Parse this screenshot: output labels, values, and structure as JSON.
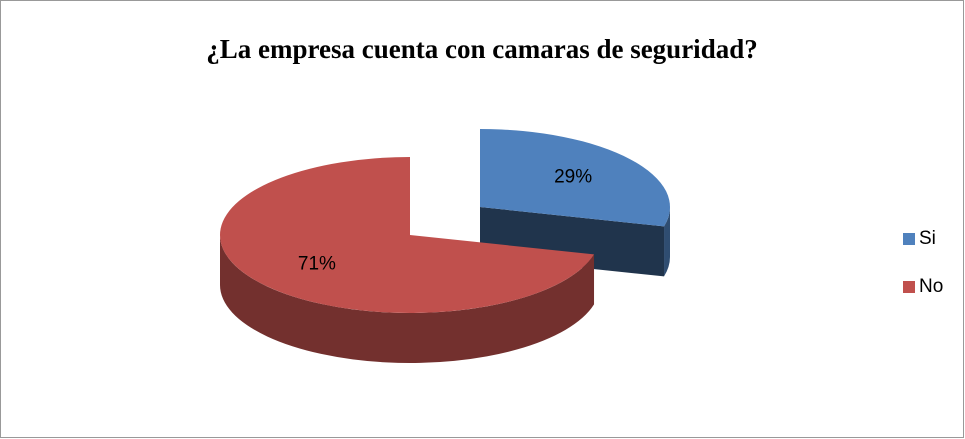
{
  "chart_data": {
    "type": "pie",
    "title": "¿La empresa cuenta con camaras de seguridad?",
    "categories": [
      "Si",
      "No"
    ],
    "values": [
      29,
      71
    ],
    "value_labels": [
      "29%",
      "71%"
    ],
    "colors": [
      "#4f81bd",
      "#c0504d"
    ],
    "legend": "right",
    "exploded": [
      "Si"
    ]
  }
}
